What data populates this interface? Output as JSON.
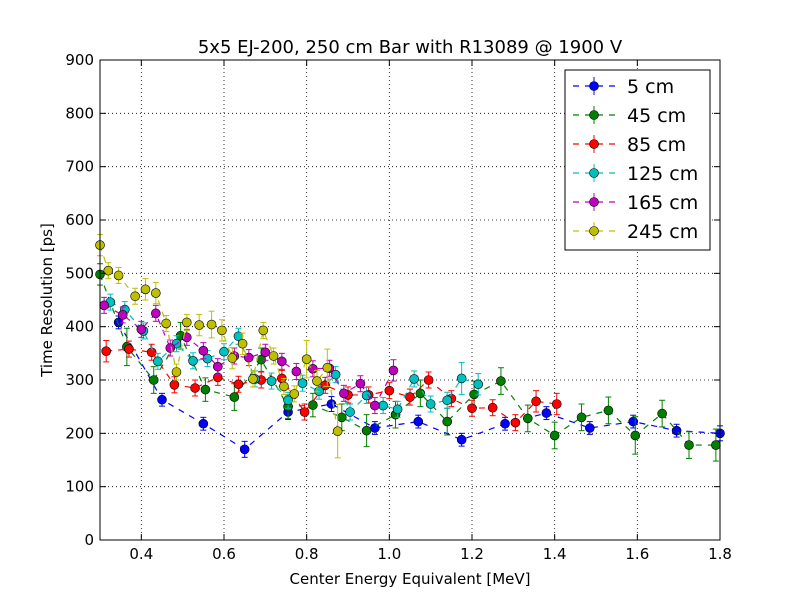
{
  "chart_data": {
    "type": "scatter",
    "title": "5x5 EJ-200, 250 cm Bar with R13089 @ 1900 V",
    "xlabel": "Center Energy Equivalent [MeV]",
    "ylabel": "Time Resolution [ps]",
    "xlim": [
      0.3,
      1.8
    ],
    "ylim": [
      0,
      900
    ],
    "xticks": [
      "0.4",
      "0.6",
      "0.8",
      "1.0",
      "1.2",
      "1.4",
      "1.6",
      "1.8"
    ],
    "xtick_values": [
      0.4,
      0.6,
      0.8,
      1.0,
      1.2,
      1.4,
      1.6,
      1.8
    ],
    "yticks": [
      "0",
      "100",
      "200",
      "300",
      "400",
      "500",
      "600",
      "700",
      "800",
      "900"
    ],
    "ytick_values": [
      0,
      100,
      200,
      300,
      400,
      500,
      600,
      700,
      800,
      900
    ],
    "grid": true,
    "legend_position": "top-right",
    "series": [
      {
        "name": "5 cm",
        "color": "#0000ff",
        "points": [
          {
            "x": 0.345,
            "y": 408,
            "err": 12
          },
          {
            "x": 0.45,
            "y": 263,
            "err": 12
          },
          {
            "x": 0.55,
            "y": 218,
            "err": 12
          },
          {
            "x": 0.65,
            "y": 170,
            "err": 15
          },
          {
            "x": 0.755,
            "y": 240,
            "err": 14
          },
          {
            "x": 0.86,
            "y": 255,
            "err": 14
          },
          {
            "x": 0.965,
            "y": 210,
            "err": 12
          },
          {
            "x": 1.07,
            "y": 222,
            "err": 12
          },
          {
            "x": 1.175,
            "y": 188,
            "err": 12
          },
          {
            "x": 1.28,
            "y": 218,
            "err": 12
          },
          {
            "x": 1.38,
            "y": 238,
            "err": 12
          },
          {
            "x": 1.485,
            "y": 210,
            "err": 12
          },
          {
            "x": 1.59,
            "y": 222,
            "err": 12
          },
          {
            "x": 1.695,
            "y": 205,
            "err": 12
          },
          {
            "x": 1.8,
            "y": 200,
            "err": 14
          }
        ]
      },
      {
        "name": "45 cm",
        "color": "#007f00",
        "points": [
          {
            "x": 0.3,
            "y": 498,
            "err": 20
          },
          {
            "x": 0.365,
            "y": 362,
            "err": 35
          },
          {
            "x": 0.43,
            "y": 300,
            "err": 25
          },
          {
            "x": 0.495,
            "y": 383,
            "err": 25
          },
          {
            "x": 0.555,
            "y": 282,
            "err": 22
          },
          {
            "x": 0.625,
            "y": 268,
            "err": 25
          },
          {
            "x": 0.69,
            "y": 338,
            "err": 22
          },
          {
            "x": 0.755,
            "y": 250,
            "err": 22
          },
          {
            "x": 0.815,
            "y": 253,
            "err": 22
          },
          {
            "x": 0.885,
            "y": 230,
            "err": 25
          },
          {
            "x": 0.945,
            "y": 205,
            "err": 30
          },
          {
            "x": 1.015,
            "y": 235,
            "err": 25
          },
          {
            "x": 1.075,
            "y": 275,
            "err": 25
          },
          {
            "x": 1.14,
            "y": 222,
            "err": 25
          },
          {
            "x": 1.205,
            "y": 273,
            "err": 25
          },
          {
            "x": 1.27,
            "y": 298,
            "err": 25
          },
          {
            "x": 1.335,
            "y": 228,
            "err": 25
          },
          {
            "x": 1.4,
            "y": 196,
            "err": 25
          },
          {
            "x": 1.465,
            "y": 230,
            "err": 25
          },
          {
            "x": 1.53,
            "y": 243,
            "err": 25
          },
          {
            "x": 1.595,
            "y": 196,
            "err": 35
          },
          {
            "x": 1.66,
            "y": 237,
            "err": 25
          },
          {
            "x": 1.725,
            "y": 178,
            "err": 25
          },
          {
            "x": 1.79,
            "y": 178,
            "err": 30
          }
        ]
      },
      {
        "name": "85 cm",
        "color": "#ff0000",
        "points": [
          {
            "x": 0.315,
            "y": 354,
            "err": 20
          },
          {
            "x": 0.37,
            "y": 358,
            "err": 15
          },
          {
            "x": 0.425,
            "y": 352,
            "err": 15
          },
          {
            "x": 0.48,
            "y": 291,
            "err": 15
          },
          {
            "x": 0.53,
            "y": 285,
            "err": 15
          },
          {
            "x": 0.585,
            "y": 305,
            "err": 15
          },
          {
            "x": 0.635,
            "y": 292,
            "err": 15
          },
          {
            "x": 0.69,
            "y": 300,
            "err": 15
          },
          {
            "x": 0.74,
            "y": 303,
            "err": 15
          },
          {
            "x": 0.795,
            "y": 240,
            "err": 15
          },
          {
            "x": 0.845,
            "y": 290,
            "err": 15
          },
          {
            "x": 0.9,
            "y": 272,
            "err": 15
          },
          {
            "x": 0.95,
            "y": 272,
            "err": 15
          },
          {
            "x": 1.0,
            "y": 280,
            "err": 15
          },
          {
            "x": 1.05,
            "y": 268,
            "err": 15
          },
          {
            "x": 1.095,
            "y": 300,
            "err": 15
          },
          {
            "x": 1.15,
            "y": 265,
            "err": 15
          },
          {
            "x": 1.2,
            "y": 247,
            "err": 15
          },
          {
            "x": 1.25,
            "y": 248,
            "err": 15
          },
          {
            "x": 1.305,
            "y": 220,
            "err": 15
          },
          {
            "x": 1.355,
            "y": 260,
            "err": 20
          },
          {
            "x": 1.405,
            "y": 255,
            "err": 20
          }
        ]
      },
      {
        "name": "125 cm",
        "color": "#00bfbf",
        "points": [
          {
            "x": 0.325,
            "y": 446,
            "err": 15
          },
          {
            "x": 0.36,
            "y": 432,
            "err": 15
          },
          {
            "x": 0.405,
            "y": 392,
            "err": 15
          },
          {
            "x": 0.44,
            "y": 335,
            "err": 15
          },
          {
            "x": 0.485,
            "y": 368,
            "err": 15
          },
          {
            "x": 0.525,
            "y": 336,
            "err": 15
          },
          {
            "x": 0.56,
            "y": 340,
            "err": 15
          },
          {
            "x": 0.6,
            "y": 353,
            "err": 15
          },
          {
            "x": 0.635,
            "y": 382,
            "err": 15
          },
          {
            "x": 0.675,
            "y": 302,
            "err": 15
          },
          {
            "x": 0.715,
            "y": 298,
            "err": 15
          },
          {
            "x": 0.755,
            "y": 262,
            "err": 15
          },
          {
            "x": 0.79,
            "y": 294,
            "err": 15
          },
          {
            "x": 0.83,
            "y": 279,
            "err": 15
          },
          {
            "x": 0.87,
            "y": 310,
            "err": 15
          },
          {
            "x": 0.905,
            "y": 240,
            "err": 15
          },
          {
            "x": 0.945,
            "y": 271,
            "err": 15
          },
          {
            "x": 0.985,
            "y": 252,
            "err": 15
          },
          {
            "x": 1.02,
            "y": 245,
            "err": 15
          },
          {
            "x": 1.06,
            "y": 302,
            "err": 15
          },
          {
            "x": 1.1,
            "y": 255,
            "err": 15
          },
          {
            "x": 1.14,
            "y": 262,
            "err": 15
          },
          {
            "x": 1.175,
            "y": 303,
            "err": 30
          },
          {
            "x": 1.215,
            "y": 292,
            "err": 20
          }
        ]
      },
      {
        "name": "165 cm",
        "color": "#bf00bf",
        "points": [
          {
            "x": 0.31,
            "y": 440,
            "err": 15
          },
          {
            "x": 0.355,
            "y": 422,
            "err": 15
          },
          {
            "x": 0.4,
            "y": 395,
            "err": 15
          },
          {
            "x": 0.435,
            "y": 425,
            "err": 15
          },
          {
            "x": 0.47,
            "y": 360,
            "err": 15
          },
          {
            "x": 0.51,
            "y": 380,
            "err": 15
          },
          {
            "x": 0.55,
            "y": 355,
            "err": 15
          },
          {
            "x": 0.585,
            "y": 325,
            "err": 15
          },
          {
            "x": 0.625,
            "y": 345,
            "err": 15
          },
          {
            "x": 0.66,
            "y": 342,
            "err": 15
          },
          {
            "x": 0.7,
            "y": 352,
            "err": 15
          },
          {
            "x": 0.74,
            "y": 335,
            "err": 15
          },
          {
            "x": 0.775,
            "y": 316,
            "err": 15
          },
          {
            "x": 0.815,
            "y": 321,
            "err": 15
          },
          {
            "x": 0.855,
            "y": 322,
            "err": 15
          },
          {
            "x": 0.89,
            "y": 275,
            "err": 15
          },
          {
            "x": 0.93,
            "y": 293,
            "err": 15
          },
          {
            "x": 0.965,
            "y": 252,
            "err": 15
          },
          {
            "x": 1.01,
            "y": 318,
            "err": 20
          }
        ]
      },
      {
        "name": "245 cm",
        "color": "#bfbf00",
        "points": [
          {
            "x": 0.3,
            "y": 553,
            "err": 20
          },
          {
            "x": 0.32,
            "y": 505,
            "err": 15
          },
          {
            "x": 0.345,
            "y": 496,
            "err": 15
          },
          {
            "x": 0.385,
            "y": 457,
            "err": 15
          },
          {
            "x": 0.41,
            "y": 470,
            "err": 20
          },
          {
            "x": 0.435,
            "y": 463,
            "err": 20
          },
          {
            "x": 0.46,
            "y": 406,
            "err": 15
          },
          {
            "x": 0.485,
            "y": 315,
            "err": 15
          },
          {
            "x": 0.51,
            "y": 408,
            "err": 15
          },
          {
            "x": 0.54,
            "y": 403,
            "err": 20
          },
          {
            "x": 0.57,
            "y": 404,
            "err": 25
          },
          {
            "x": 0.595,
            "y": 393,
            "err": 20
          },
          {
            "x": 0.62,
            "y": 341,
            "err": 20
          },
          {
            "x": 0.645,
            "y": 368,
            "err": 20
          },
          {
            "x": 0.67,
            "y": 302,
            "err": 15
          },
          {
            "x": 0.695,
            "y": 393,
            "err": 15
          },
          {
            "x": 0.72,
            "y": 345,
            "err": 15
          },
          {
            "x": 0.745,
            "y": 288,
            "err": 15
          },
          {
            "x": 0.77,
            "y": 274,
            "err": 15
          },
          {
            "x": 0.8,
            "y": 339,
            "err": 35
          },
          {
            "x": 0.825,
            "y": 298,
            "err": 20
          },
          {
            "x": 0.85,
            "y": 323,
            "err": 35
          },
          {
            "x": 0.875,
            "y": 204,
            "err": 50
          }
        ]
      }
    ]
  }
}
